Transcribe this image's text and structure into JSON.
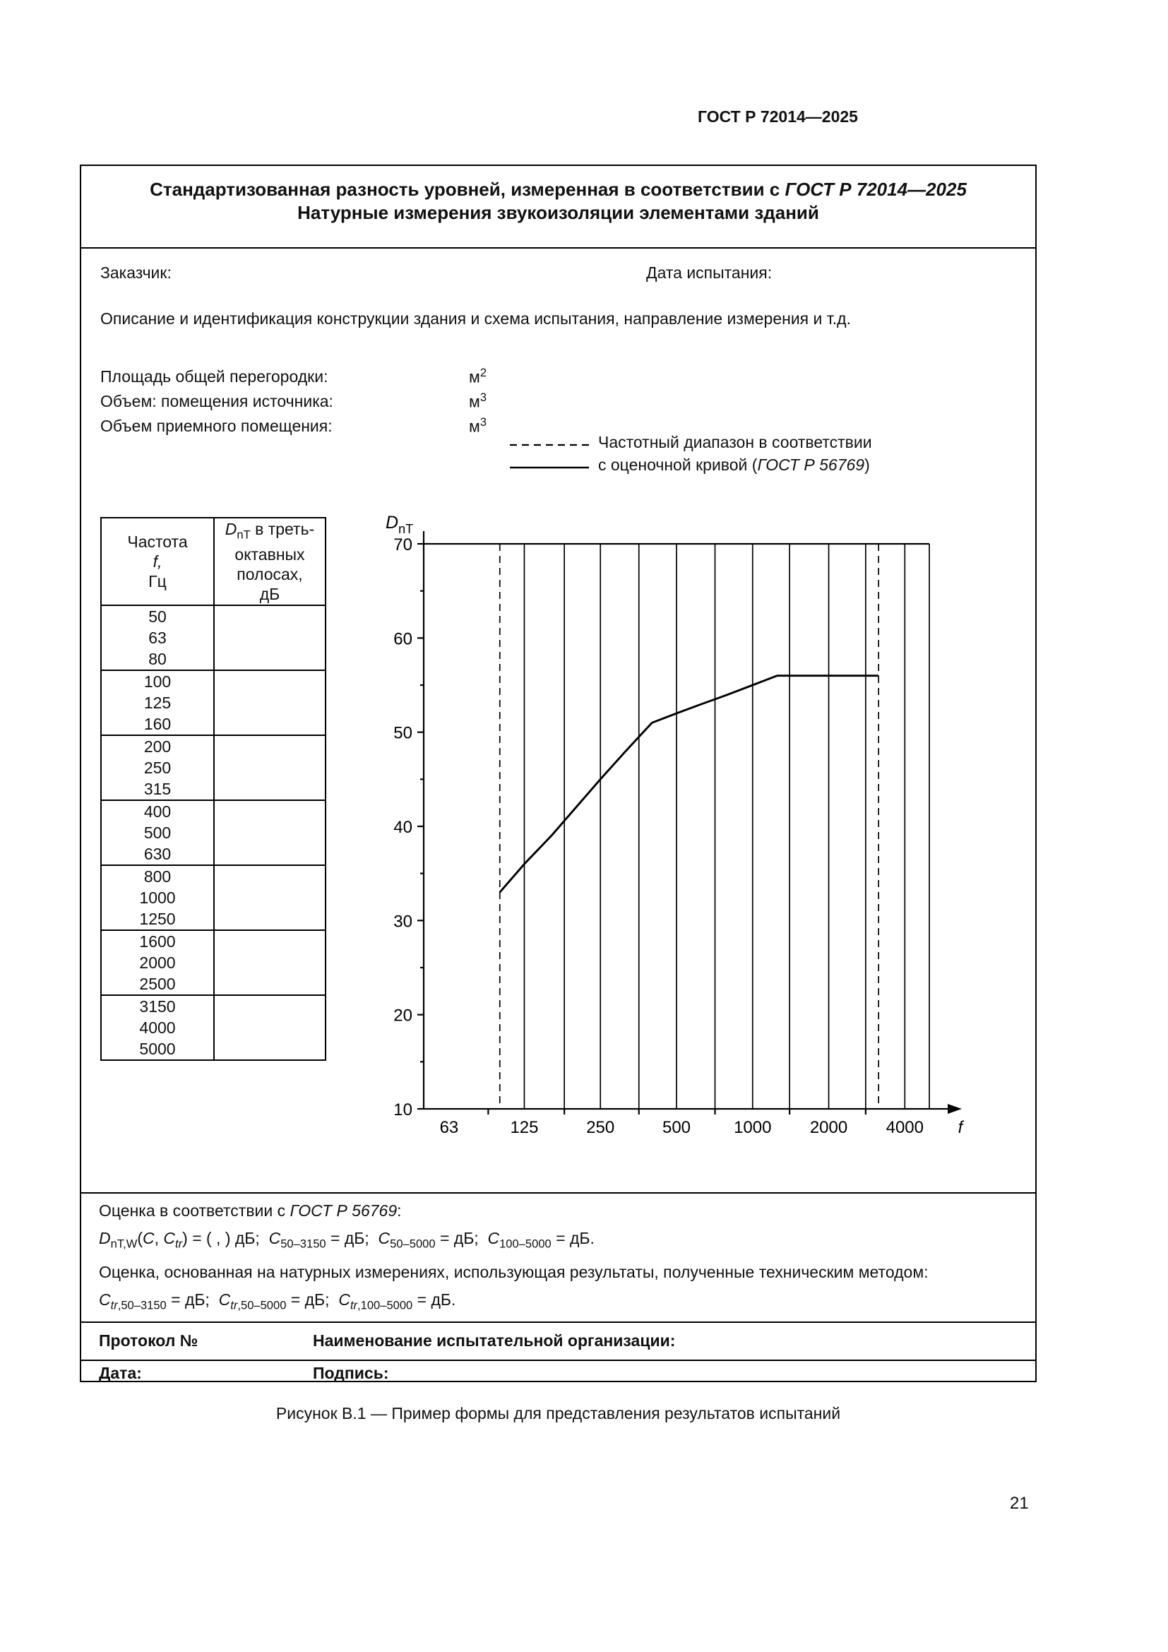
{
  "page": {
    "doc_code": "ГОСТ Р 72014—2025",
    "figure_caption": "Рисунок В.1 — Пример формы для представления результатов испытаний",
    "page_number": "21"
  },
  "form": {
    "title1": [
      {
        "t": "Стандартизованная разность уровней, измеренная в соответствии с "
      },
      {
        "t": "ГОСТ Р 72014—2025",
        "i": true
      }
    ],
    "title2": "Натурные измерения звукоизоляции элементами зданий",
    "customer_label": "Заказчик:",
    "test_date_label": "Дата испытания:",
    "description_label": "Описание и идентификация конструкции здания и схема испытания, направление измерения и т.д.",
    "area_label": "Площадь общей перегородки:",
    "volume_source_label": "Объем: помещения источника:",
    "volume_receiving_label": "Объем приемного помещения:",
    "unit_m2": [
      {
        "t": "м"
      },
      {
        "t": "2",
        "s": "sup"
      }
    ],
    "unit_m3": [
      {
        "t": "м"
      },
      {
        "t": "3",
        "s": "sup"
      }
    ],
    "legend_dashed_text": "Частотный диапазон в соответствии",
    "legend_solid_text": [
      {
        "t": "с оценочной кривой ("
      },
      {
        "t": "ГОСТ Р 56769",
        "i": true
      },
      {
        "t": ")"
      }
    ],
    "eval_heading": [
      {
        "t": "Оценка в соответствии с "
      },
      {
        "t": "ГОСТ Р 56769",
        "i": true
      },
      {
        "t": ":"
      }
    ],
    "formula1": [
      {
        "t": "D",
        "i": true
      },
      {
        "t": "nT,W",
        "s": "sub"
      },
      {
        "t": "("
      },
      {
        "t": "C",
        "i": true
      },
      {
        "t": ", "
      },
      {
        "t": "C",
        "i": true
      },
      {
        "t": "tr",
        "s": "sub",
        "i": true
      },
      {
        "t": ") = ( , ) дБ;  "
      },
      {
        "t": "C",
        "i": true
      },
      {
        "t": "50–3150",
        "s": "sub"
      },
      {
        "t": " = дБ;  "
      },
      {
        "t": "C",
        "i": true
      },
      {
        "t": "50–5000",
        "s": "sub"
      },
      {
        "t": " = дБ;  "
      },
      {
        "t": "C",
        "i": true
      },
      {
        "t": "100–5000",
        "s": "sub"
      },
      {
        "t": " = дБ."
      }
    ],
    "eval_field_label": "Оценка, основанная на натурных измерениях, использующая результаты, полученные техническим методом:",
    "formula2": [
      {
        "t": "C",
        "i": true
      },
      {
        "t": "tr",
        "s": "sub",
        "i": true
      },
      {
        "t": ",50–3150",
        "s": "sub"
      },
      {
        "t": " = дБ;  "
      },
      {
        "t": "C",
        "i": true
      },
      {
        "t": "tr",
        "s": "sub",
        "i": true
      },
      {
        "t": ",50–5000",
        "s": "sub"
      },
      {
        "t": " = дБ;  "
      },
      {
        "t": "C",
        "i": true
      },
      {
        "t": "tr",
        "s": "sub",
        "i": true
      },
      {
        "t": ",100–5000",
        "s": "sub"
      },
      {
        "t": " = дБ."
      }
    ],
    "protocol_label": "Протокол №",
    "organization_label": "Наименование испытательной организации:",
    "date_label": "Дата:",
    "signature_label": "Подпись:"
  },
  "table": {
    "header_col1": [
      {
        "t": "Частота"
      },
      {
        "br": true
      },
      {
        "t": "f,",
        "i": true
      },
      {
        "br": true
      },
      {
        "t": "Гц"
      }
    ],
    "header_col2": [
      {
        "t": "D",
        "i": true
      },
      {
        "t": "nT",
        "s": "sub"
      },
      {
        "t": " в треть-"
      },
      {
        "br": true
      },
      {
        "t": "октавных"
      },
      {
        "br": true
      },
      {
        "t": "полосах,"
      },
      {
        "br": true
      },
      {
        "t": "дБ"
      }
    ],
    "groups": [
      [
        "50",
        "63",
        "80"
      ],
      [
        "100",
        "125",
        "160"
      ],
      [
        "200",
        "250",
        "315"
      ],
      [
        "400",
        "500",
        "630"
      ],
      [
        "800",
        "1000",
        "1250"
      ],
      [
        "1600",
        "2000",
        "2500"
      ],
      [
        "3150",
        "4000",
        "5000"
      ]
    ]
  },
  "chart_data": {
    "type": "line",
    "title": "",
    "x_axis_label": "f",
    "y_axis_label_main": "D",
    "y_axis_label_sub": "nT",
    "x_scale": "log",
    "x_range": [
      50,
      5000
    ],
    "y_range": [
      10,
      70
    ],
    "x_tick_labels": [
      63,
      125,
      250,
      500,
      1000,
      2000,
      4000
    ],
    "x_minor_ticks": [
      90,
      180,
      355,
      710,
      1400,
      2800
    ],
    "y_ticks": [
      10,
      20,
      30,
      40,
      50,
      60,
      70
    ],
    "solid_gridlines_x": [
      125,
      180,
      250,
      355,
      500,
      710,
      1000,
      1400,
      2000,
      2800,
      4000
    ],
    "dashed_lines_x": [
      100,
      3150
    ],
    "grid": "vertical-only",
    "legend_position": "above-chart",
    "series": [
      {
        "name": "оценочная кривая (ГОСТ Р 56769)",
        "x": [
          100,
          125,
          160,
          200,
          250,
          315,
          400,
          500,
          630,
          800,
          1000,
          1250,
          1600,
          2000,
          2500,
          3150
        ],
        "y": [
          33,
          36,
          39,
          42,
          45,
          48,
          51,
          52,
          53,
          54,
          55,
          56,
          56,
          56,
          56,
          56
        ]
      }
    ]
  }
}
